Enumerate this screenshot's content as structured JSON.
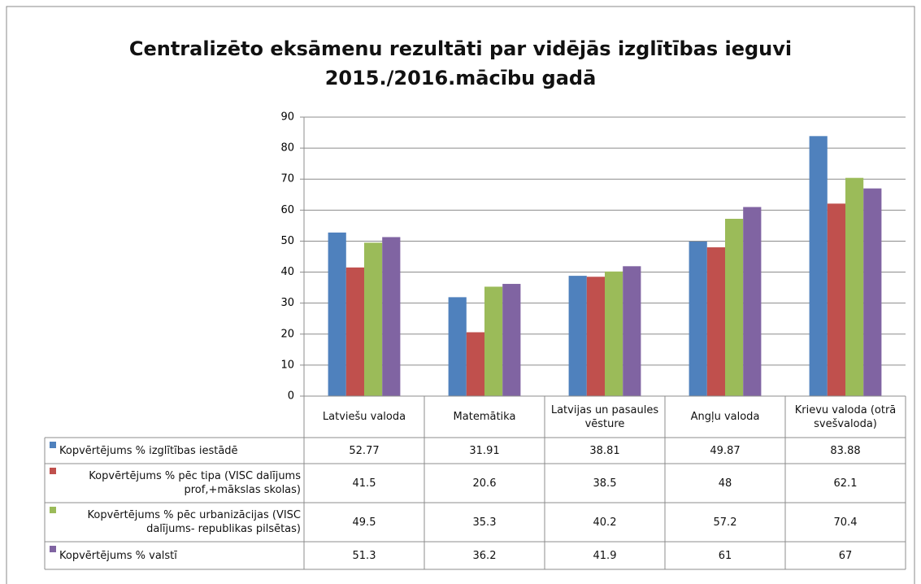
{
  "chart_data": {
    "type": "bar",
    "title": "Centralizēto eksāmenu rezultāti par vidējās izglītības ieguvi\n2015./2016.mācību gadā",
    "categories": [
      "Latviešu valoda",
      "Matemātika",
      "Latvijas un pasaules vēsture",
      "Angļu valoda",
      "Krievu valoda (otrā svešvaloda)"
    ],
    "series": [
      {
        "name": "Kopvērtējums % izglītības iestādē",
        "color": "#4f81bd",
        "values": [
          52.77,
          31.91,
          38.81,
          49.87,
          83.88
        ]
      },
      {
        "name": "Kopvērtējums % pēc tipa (VISC dalījums prof,+mākslas skolas)",
        "color": "#c0504d",
        "values": [
          41.5,
          20.6,
          38.5,
          48,
          62.1
        ]
      },
      {
        "name": "Kopvērtējums % pēc urbanizācijas (VISC dalījums- republikas pilsētas)",
        "color": "#9bbb59",
        "values": [
          49.5,
          35.3,
          40.2,
          57.2,
          70.4
        ]
      },
      {
        "name": "Kopvērtējums % valstī",
        "color": "#8064a2",
        "values": [
          51.3,
          36.2,
          41.9,
          61,
          67
        ]
      }
    ],
    "ylim": [
      0,
      90
    ],
    "yticks": [
      0,
      10,
      20,
      30,
      40,
      50,
      60,
      70,
      80,
      90
    ],
    "grid": true,
    "data_table": true
  }
}
